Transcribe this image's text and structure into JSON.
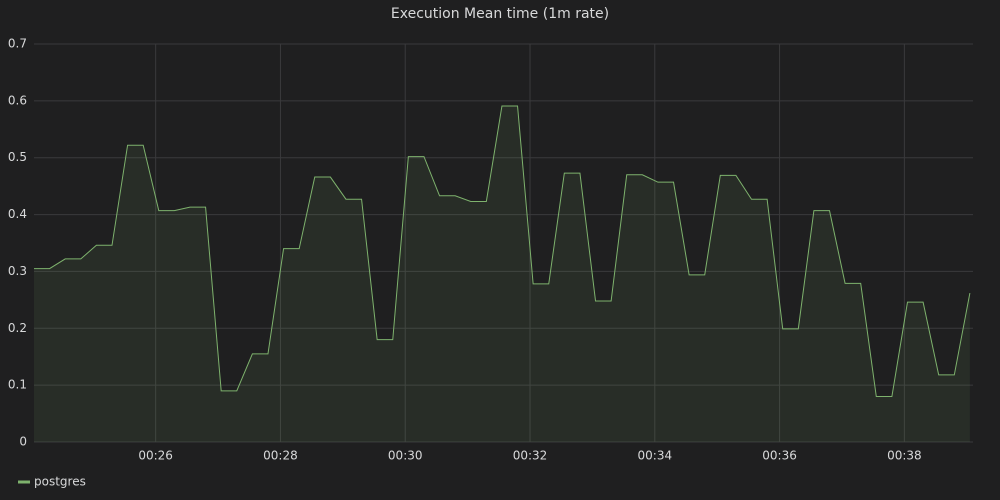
{
  "chart_data": {
    "type": "line",
    "title": "Execution Mean time (1m rate)",
    "x": [
      24.05,
      24.3,
      24.55,
      24.8,
      25.05,
      25.3,
      25.55,
      25.8,
      26.05,
      26.3,
      26.55,
      26.8,
      27.05,
      27.3,
      27.55,
      27.8,
      28.05,
      28.3,
      28.55,
      28.8,
      29.05,
      29.3,
      29.55,
      29.8,
      30.05,
      30.3,
      30.55,
      30.8,
      31.05,
      31.3,
      31.55,
      31.8,
      32.05,
      32.3,
      32.55,
      32.8,
      33.05,
      33.3,
      33.55,
      33.8,
      34.05,
      34.3,
      34.55,
      34.8,
      35.05,
      35.3,
      35.55,
      35.8,
      36.05,
      36.3,
      36.55,
      36.8,
      37.05,
      37.3,
      37.55,
      37.8,
      38.05,
      38.3,
      38.55,
      38.8,
      39.05
    ],
    "series": [
      {
        "name": "postgres",
        "color": "#7eb26d",
        "values": [
          0.305,
          0.305,
          0.322,
          0.322,
          0.346,
          0.346,
          0.522,
          0.522,
          0.407,
          0.407,
          0.413,
          0.413,
          0.09,
          0.09,
          0.155,
          0.155,
          0.34,
          0.34,
          0.466,
          0.466,
          0.427,
          0.427,
          0.18,
          0.18,
          0.502,
          0.502,
          0.433,
          0.433,
          0.423,
          0.423,
          0.591,
          0.591,
          0.278,
          0.278,
          0.473,
          0.473,
          0.248,
          0.248,
          0.47,
          0.47,
          0.457,
          0.457,
          0.294,
          0.294,
          0.469,
          0.469,
          0.427,
          0.427,
          0.199,
          0.199,
          0.407,
          0.407,
          0.279,
          0.279,
          0.08,
          0.08,
          0.246,
          0.246,
          0.118,
          0.118,
          0.262
        ]
      }
    ],
    "xlim": [
      24.05,
      39.1
    ],
    "xticks": [
      {
        "value": 26,
        "label": "00:26"
      },
      {
        "value": 28,
        "label": "00:28"
      },
      {
        "value": 30,
        "label": "00:30"
      },
      {
        "value": 32,
        "label": "00:32"
      },
      {
        "value": 34,
        "label": "00:34"
      },
      {
        "value": 36,
        "label": "00:36"
      },
      {
        "value": 38,
        "label": "00:38"
      }
    ],
    "ylim": [
      0,
      0.7
    ],
    "yticks": [
      0,
      0.1,
      0.2,
      0.3,
      0.4,
      0.5,
      0.6,
      0.7
    ],
    "grid": true,
    "legend": "bottom-left"
  }
}
